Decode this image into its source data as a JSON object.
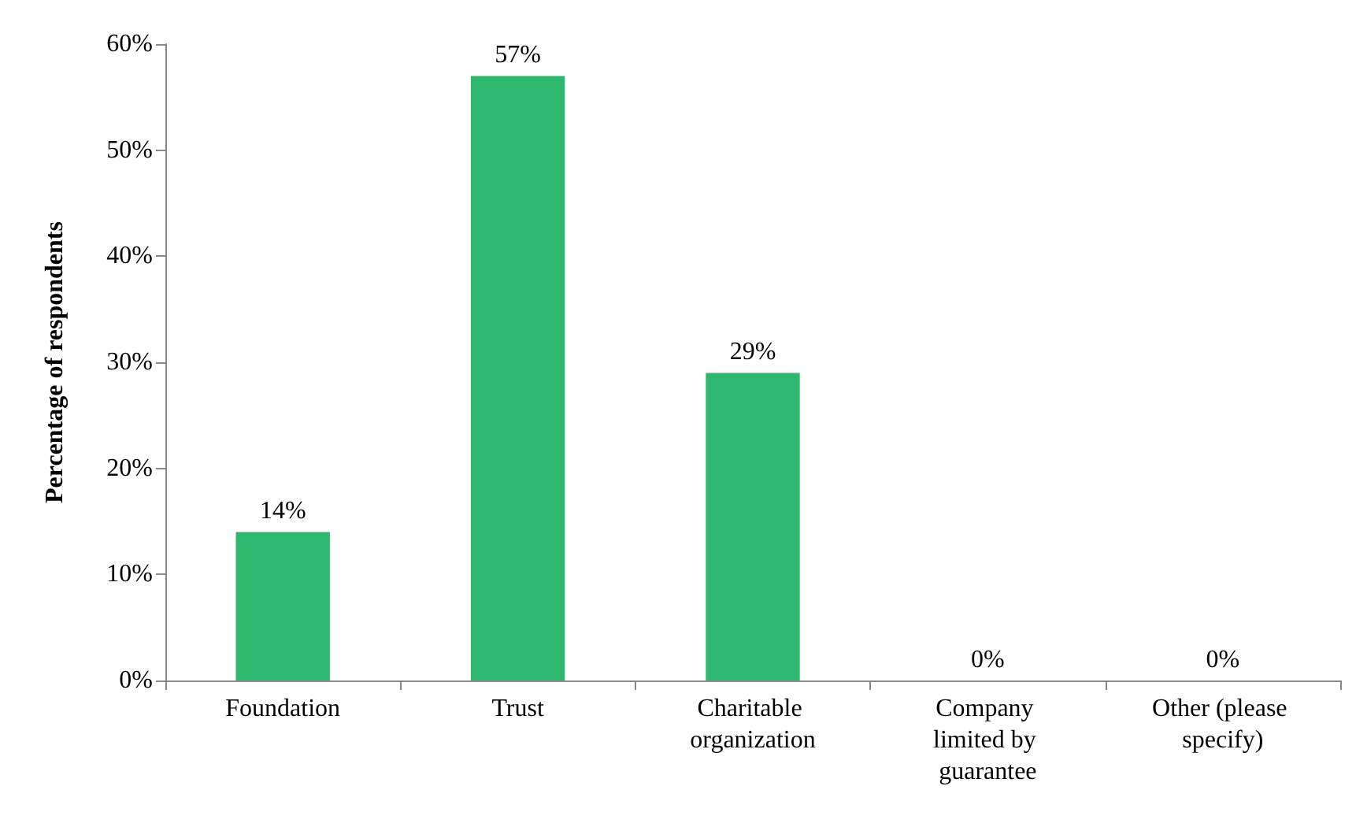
{
  "chart_data": {
    "type": "bar",
    "ylabel": "Percentage of respondents",
    "categories": [
      "Foundation",
      "Trust",
      "Charitable organization",
      "Company limited by guarantee",
      "Other (please specify)"
    ],
    "values": [
      14,
      57,
      29,
      0,
      0
    ],
    "value_labels": [
      "14%",
      "57%",
      "29%",
      "0%",
      "0%"
    ],
    "color": "#2eb86e",
    "ylim": [
      0,
      60
    ],
    "yticks": [
      {
        "value": 0,
        "label": "0%"
      },
      {
        "value": 10,
        "label": "10%"
      },
      {
        "value": 20,
        "label": "20%"
      },
      {
        "value": 30,
        "label": "30%"
      },
      {
        "value": 40,
        "label": "40%"
      },
      {
        "value": 50,
        "label": "50%"
      },
      {
        "value": 60,
        "label": "60%"
      }
    ],
    "grid": false
  }
}
